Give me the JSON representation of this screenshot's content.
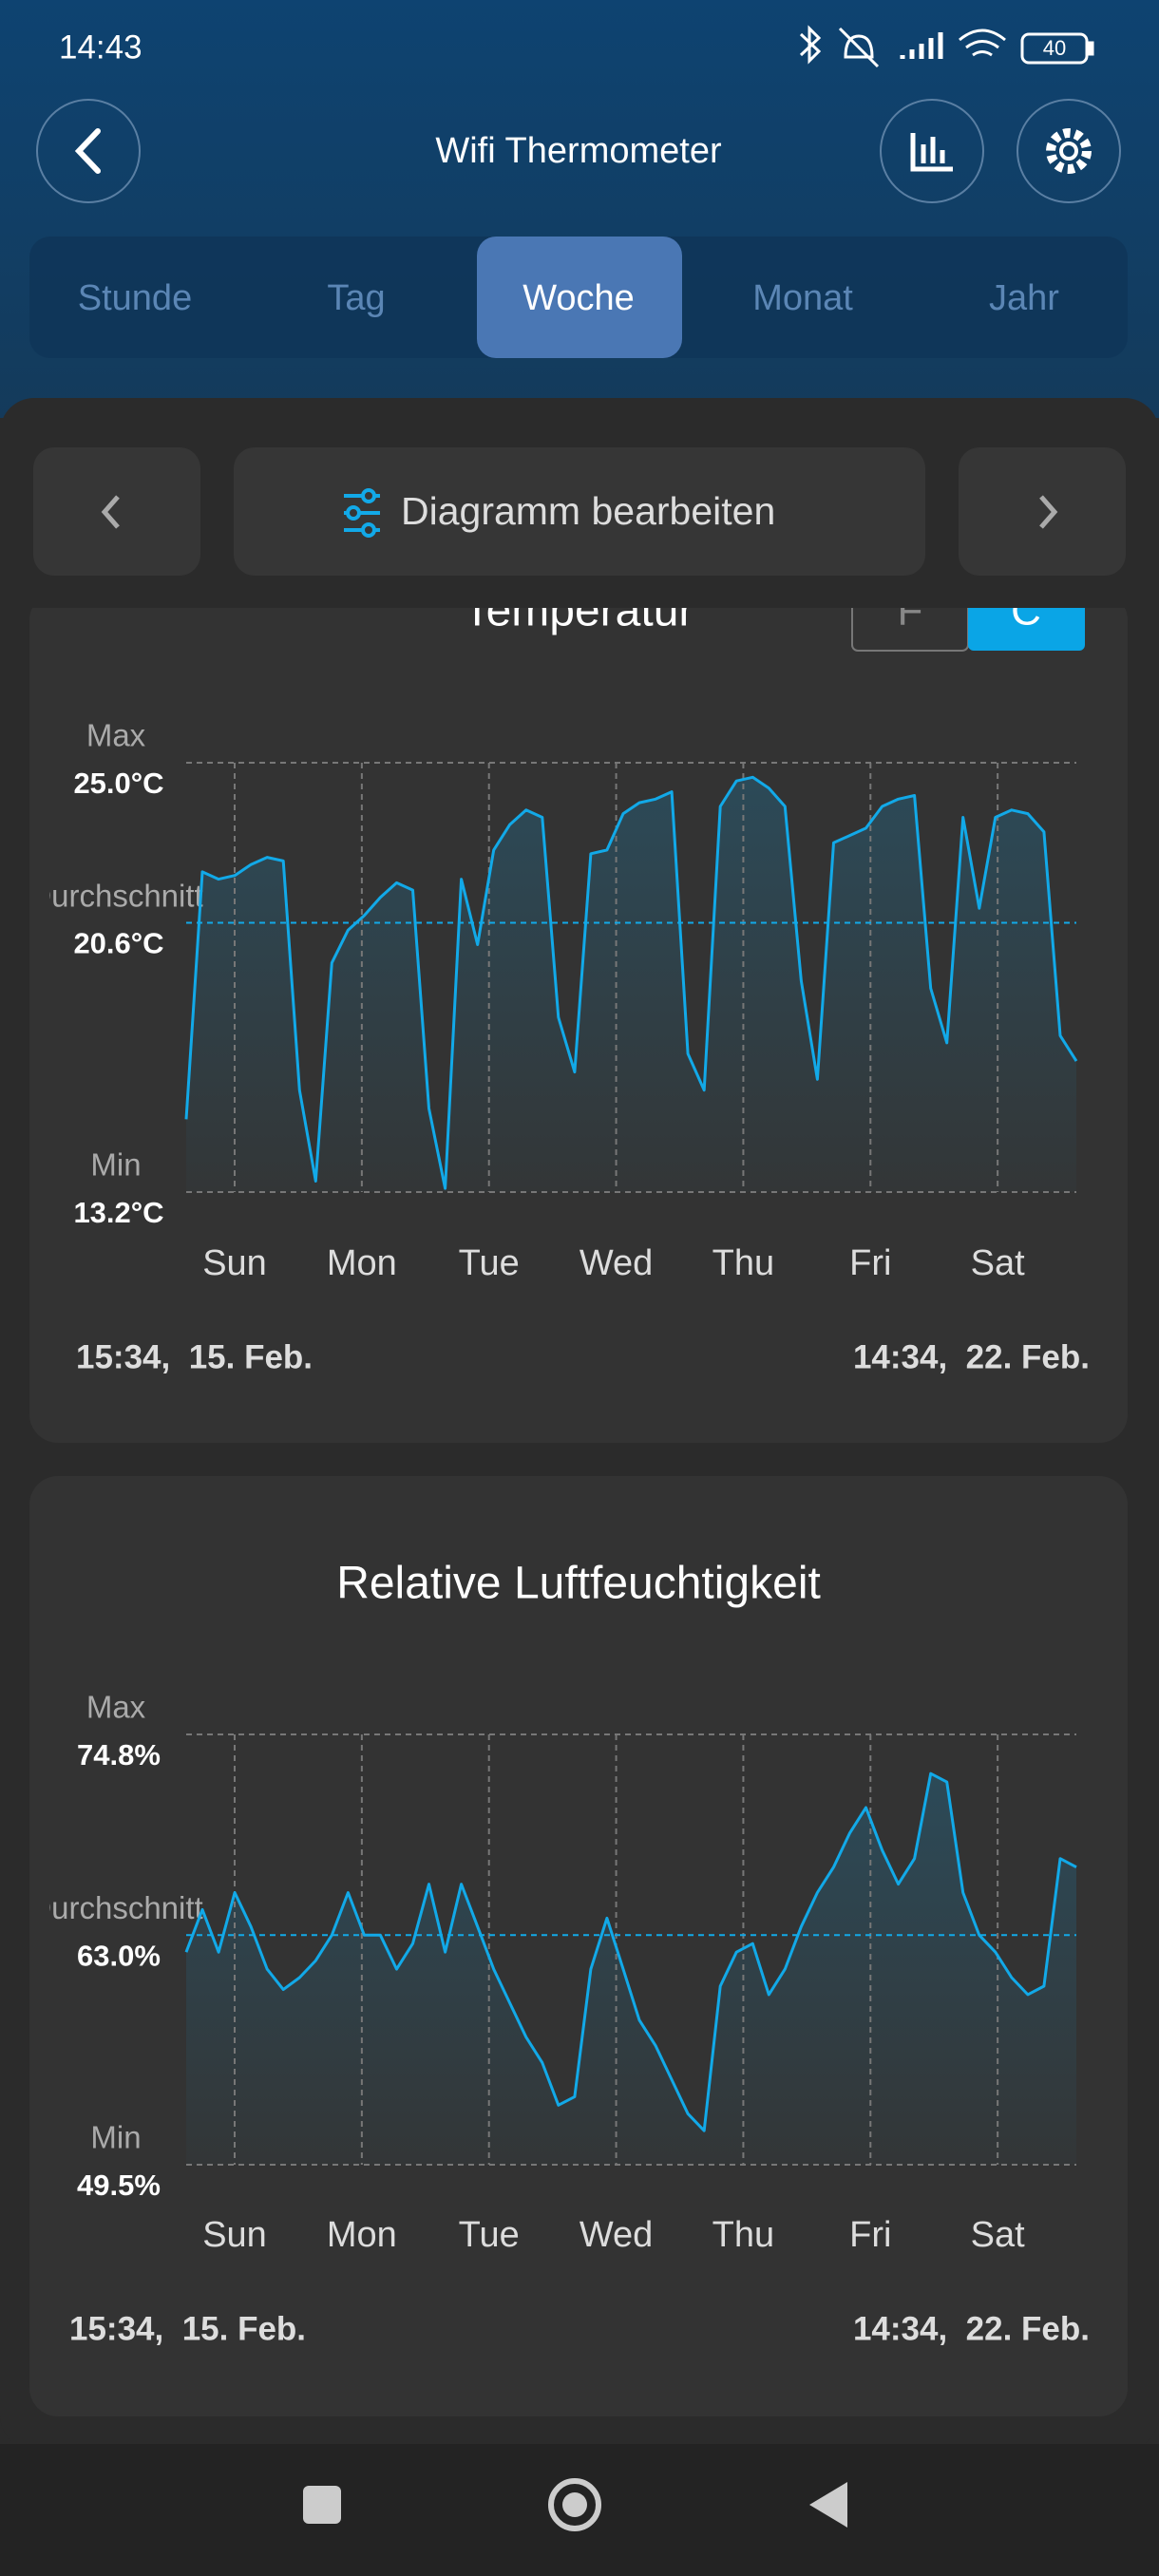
{
  "status_bar": {
    "time": "14:43",
    "battery": "40"
  },
  "header": {
    "title": "Wifi Thermometer"
  },
  "tabs": {
    "items": [
      "Stunde",
      "Tag",
      "Woche",
      "Monat",
      "Jahr"
    ],
    "selected": 2
  },
  "nav": {
    "label": "Diagramm bearbeiten"
  },
  "chart_data": [
    {
      "type": "line",
      "title": "Temperatur",
      "unit_toggle": [
        "F",
        "C"
      ],
      "color": "#12a9e8",
      "ylim": [
        13.2,
        25.0
      ],
      "yticks": [
        {
          "value": 25.0,
          "label": "25.0°C"
        },
        {
          "value": 20.6,
          "label": "20.6°C"
        },
        {
          "value": 13.2,
          "label": "13.2°C"
        }
      ],
      "ytick_names": [
        "Max",
        "Durchschnitt",
        "Min"
      ],
      "xticks": [
        "Sun",
        "Mon",
        "Tue",
        "Wed",
        "Thu",
        "Fri",
        "Sat"
      ],
      "start_label": "15:34,  15. Feb.",
      "end_label": "14:34,  22. Feb.",
      "values": [
        15.2,
        22.0,
        21.8,
        21.9,
        22.2,
        22.4,
        22.3,
        16.0,
        13.5,
        19.5,
        20.4,
        20.8,
        21.3,
        21.7,
        21.5,
        15.5,
        13.3,
        21.8,
        20.0,
        22.6,
        23.3,
        23.7,
        23.5,
        18.0,
        16.5,
        22.5,
        22.6,
        23.6,
        23.9,
        24.0,
        24.2,
        17.0,
        16.0,
        23.8,
        24.5,
        24.6,
        24.3,
        23.8,
        19.0,
        16.3,
        22.8,
        23.0,
        23.2,
        23.8,
        24.0,
        24.1,
        18.8,
        17.3,
        23.5,
        21.0,
        23.5,
        23.7,
        23.6,
        23.1,
        17.5,
        16.8
      ]
    },
    {
      "type": "line",
      "title": "Relative Luftfeuchtigkeit",
      "color": "#12a9e8",
      "ylim": [
        49.5,
        74.8
      ],
      "yticks": [
        {
          "value": 74.8,
          "label": "74.8%"
        },
        {
          "value": 63.0,
          "label": "63.0%"
        },
        {
          "value": 49.5,
          "label": "49.5%"
        }
      ],
      "ytick_names": [
        "Max",
        "Durchschnitt",
        "Min"
      ],
      "xticks": [
        "Sun",
        "Mon",
        "Tue",
        "Wed",
        "Thu",
        "Fri",
        "Sat"
      ],
      "start_label": "15:34,  15. Feb.",
      "end_label": "14:34,  22. Feb.",
      "values": [
        62.0,
        64.5,
        62.0,
        65.5,
        63.5,
        61.0,
        59.8,
        60.5,
        61.5,
        63.0,
        65.5,
        63.0,
        63.0,
        61.0,
        62.5,
        66.0,
        62.0,
        66.0,
        63.5,
        61.0,
        59.0,
        57.0,
        55.5,
        53.0,
        53.5,
        61.0,
        64.0,
        61.0,
        58.0,
        56.5,
        54.5,
        52.5,
        51.5,
        60.0,
        62.0,
        62.5,
        59.5,
        61.0,
        63.5,
        65.5,
        67.0,
        69.0,
        70.5,
        68.0,
        66.0,
        67.5,
        72.5,
        72.0,
        65.5,
        63.0,
        62.0,
        60.5,
        59.5,
        60.0,
        67.5,
        67.0
      ]
    }
  ]
}
